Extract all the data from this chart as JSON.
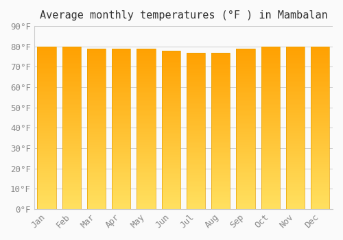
{
  "title": "Average monthly temperatures (°F ) in Mambalan",
  "months": [
    "Jan",
    "Feb",
    "Mar",
    "Apr",
    "May",
    "Jun",
    "Jul",
    "Aug",
    "Sep",
    "Oct",
    "Nov",
    "Dec"
  ],
  "values": [
    80,
    80,
    79,
    79,
    79,
    78,
    77,
    77,
    79,
    80,
    80,
    80
  ],
  "ylim": [
    0,
    90
  ],
  "yticks": [
    0,
    10,
    20,
    30,
    40,
    50,
    60,
    70,
    80,
    90
  ],
  "ytick_labels": [
    "0°F",
    "10°F",
    "20°F",
    "30°F",
    "40°F",
    "50°F",
    "60°F",
    "70°F",
    "80°F",
    "90°F"
  ],
  "bar_color_top": "#FFC107",
  "bar_color_bottom": "#FFD54F",
  "background_color": "#FAFAFA",
  "grid_color": "#CCCCCC",
  "title_fontsize": 11,
  "tick_fontsize": 9,
  "bar_width": 0.75
}
